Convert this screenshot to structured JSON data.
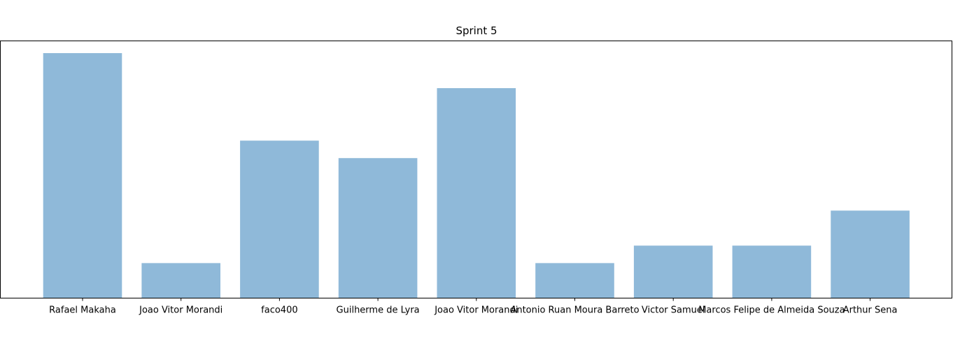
{
  "chart_data": {
    "type": "bar",
    "title": "Sprint 5",
    "xlabel": "",
    "ylabel": "",
    "categories": [
      "Rafael Makaha",
      "Joao Vitor Morandi",
      "faco400",
      "Guilherme de Lyra",
      "Joao Vitor Morandi",
      "Antonio Ruan Moura Barreto",
      "Victor Samuel",
      "Marcos Felipe de Almeida Souza",
      "Arthur Sena"
    ],
    "values": [
      14,
      2,
      9,
      8,
      12,
      2,
      3,
      3,
      5
    ],
    "ylim": [
      0,
      14.7
    ],
    "grid": false,
    "y_ticks_visible": false,
    "bar_color": "#8fb9d9"
  }
}
